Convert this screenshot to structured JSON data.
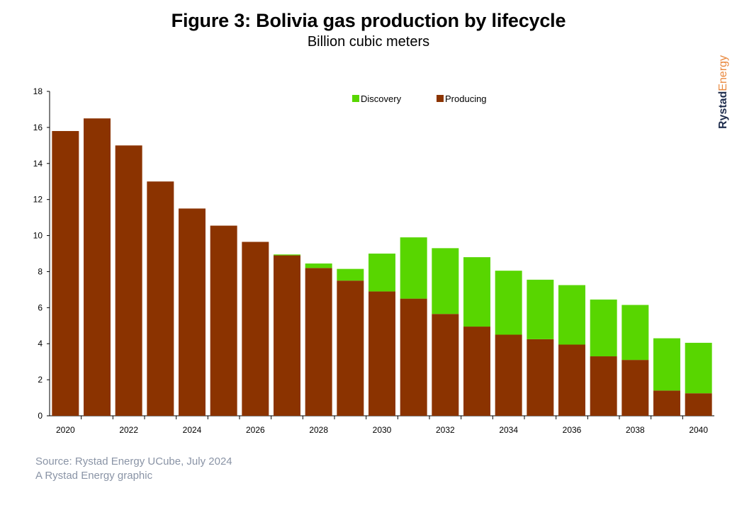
{
  "header": {
    "title": "Figure 3: Bolivia gas production by lifecycle",
    "subtitle": "Billion cubic meters"
  },
  "brand": {
    "part1": "Rystad",
    "part2": "Energy"
  },
  "footer": {
    "source": "Source: Rystad Energy UCube, July 2024",
    "credit": "A Rystad Energy graphic"
  },
  "colors": {
    "producing": "#8b3300",
    "discovery": "#58d600"
  },
  "chart_data": {
    "type": "bar",
    "stacked": true,
    "title": "Figure 3: Bolivia gas production by lifecycle",
    "subtitle": "Billion cubic meters",
    "categories": [
      "2020",
      "2021",
      "2022",
      "2023",
      "2024",
      "2025",
      "2026",
      "2027",
      "2028",
      "2029",
      "2030",
      "2031",
      "2032",
      "2033",
      "2034",
      "2035",
      "2036",
      "2037",
      "2038",
      "2039",
      "2040"
    ],
    "x_tick_labels": [
      "2020",
      "2022",
      "2024",
      "2026",
      "2028",
      "2030",
      "2032",
      "2034",
      "2036",
      "2038",
      "2040"
    ],
    "series": [
      {
        "name": "Producing",
        "color": "#8b3300",
        "values": [
          15.8,
          16.5,
          15.0,
          13.0,
          11.5,
          10.55,
          9.65,
          8.9,
          8.2,
          7.5,
          6.9,
          6.5,
          5.65,
          4.95,
          4.5,
          4.25,
          3.95,
          3.3,
          3.1,
          1.4,
          1.25
        ]
      },
      {
        "name": "Discovery",
        "color": "#58d600",
        "values": [
          0,
          0,
          0,
          0,
          0,
          0,
          0,
          0.05,
          0.25,
          0.65,
          2.1,
          3.4,
          3.65,
          3.85,
          3.55,
          3.3,
          3.3,
          3.15,
          3.05,
          2.9,
          2.8
        ]
      }
    ],
    "ylim": [
      0,
      18
    ],
    "y_ticks": [
      0,
      2,
      4,
      6,
      8,
      10,
      12,
      14,
      16,
      18
    ],
    "legend": {
      "placement": "top-center",
      "entries": [
        "Discovery",
        "Producing"
      ]
    },
    "grid": false
  }
}
